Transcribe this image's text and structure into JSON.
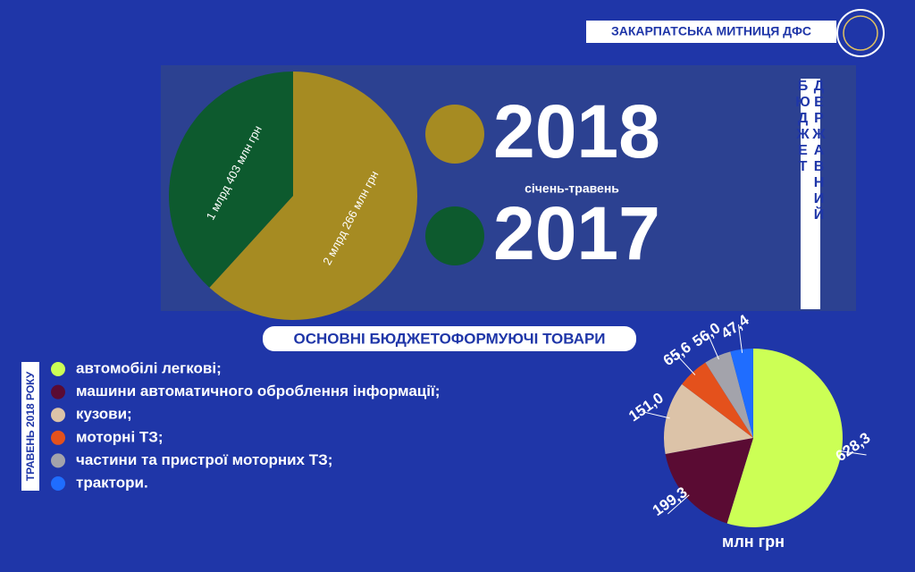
{
  "header": {
    "title": "ЗАКАРПАТСЬКА МИТНИЦЯ ДФС"
  },
  "side_title": "ДЕРЖАВНИЙ БЮДЖЕТ",
  "chart_data": [
    {
      "type": "pie",
      "subtitle": "січень-травень",
      "categories": [
        "2018",
        "2017"
      ],
      "values": [
        2266,
        1403
      ],
      "value_labels": [
        "2 млрд 266 млн грн",
        "1 млрд 403 млн грн"
      ],
      "colors": [
        "#a68b22",
        "#0d5a2e"
      ]
    },
    {
      "type": "pie",
      "title": "ОСНОВНІ БЮДЖЕТОФОРМУЮЧІ ТОВАРИ",
      "side_label": "ТРАВЕНЬ 2018 РОКУ",
      "unit": "млн грн",
      "categories": [
        "автомобілі легкові;",
        "машини автоматичного оброблення інформації;",
        "кузови;",
        "моторні ТЗ;",
        "частини та пристрої моторних ТЗ;",
        "трактори."
      ],
      "values": [
        628.3,
        199.3,
        151.0,
        65.6,
        56.0,
        47.4
      ],
      "value_labels": [
        "628,3",
        "199,3",
        "151,0",
        "65,6",
        "56,0",
        "47,4"
      ],
      "colors": [
        "#ccff55",
        "#5a0b33",
        "#dcc3a8",
        "#e4511c",
        "#a3a3ab",
        "#1f6dff"
      ]
    }
  ]
}
